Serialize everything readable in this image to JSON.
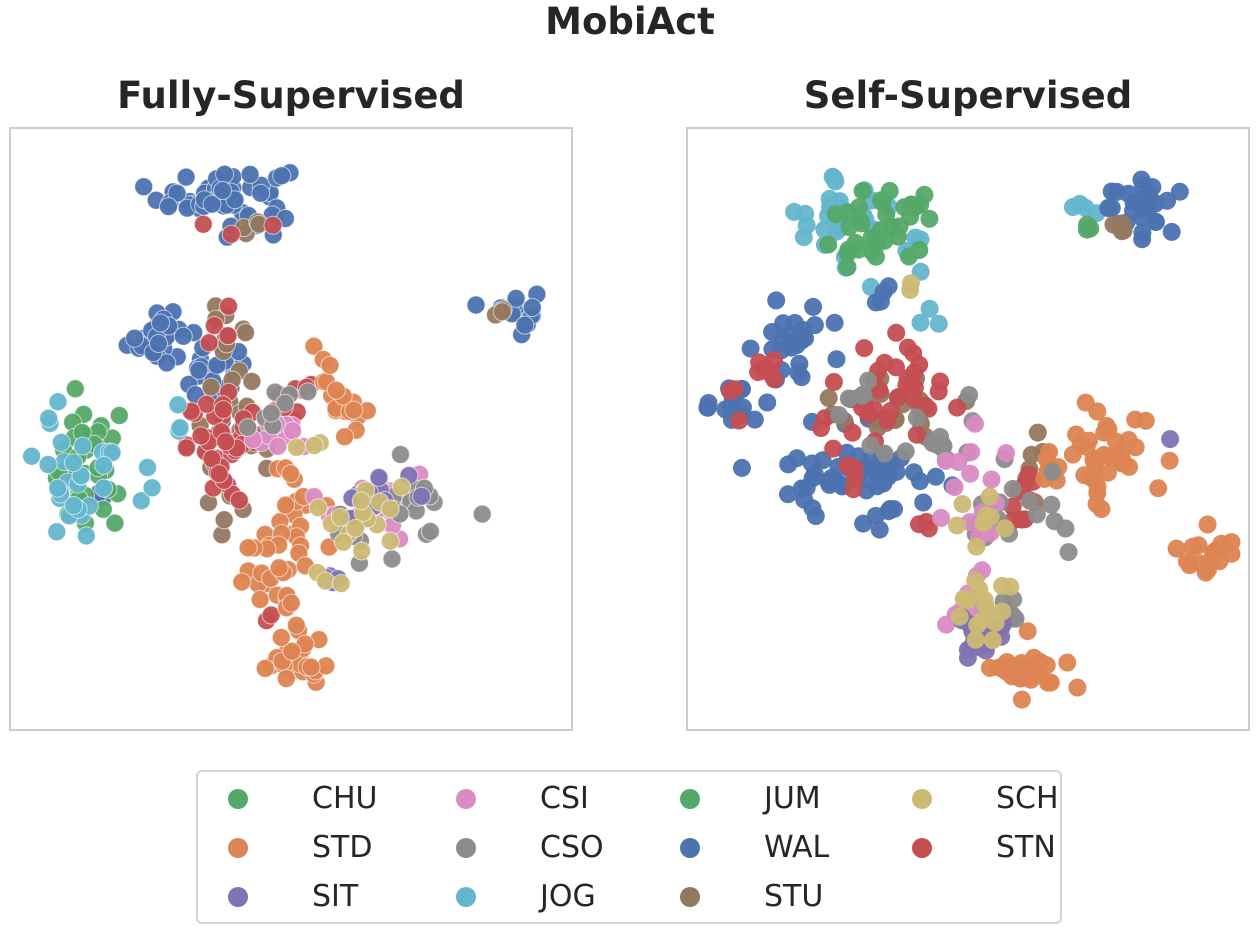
{
  "title": "MobiAct",
  "panels": [
    {
      "title": "Fully-Supervised"
    },
    {
      "title": "Self-Supervised"
    }
  ],
  "legend": {
    "position": "bottom-center",
    "columns": 4,
    "items": [
      {
        "label": "CHU",
        "color": "#55a868"
      },
      {
        "label": "STD",
        "color": "#dd8452"
      },
      {
        "label": "SIT",
        "color": "#8172b3"
      },
      {
        "label": "CSI",
        "color": "#da8bc3"
      },
      {
        "label": "CSO",
        "color": "#8c8c8c"
      },
      {
        "label": "JOG",
        "color": "#64b5cd"
      },
      {
        "label": "JUM",
        "color": "#55a868"
      },
      {
        "label": "WAL",
        "color": "#4c72b0"
      },
      {
        "label": "STU",
        "color": "#937860"
      },
      {
        "label": "SCH",
        "color": "#ccb974"
      },
      {
        "label": "STN",
        "color": "#c44e52"
      }
    ]
  },
  "chart_data": [
    {
      "type": "scatter",
      "title": "Fully-Supervised",
      "xlabel": "",
      "ylabel": "",
      "xlim": [
        0,
        100
      ],
      "ylim": [
        0,
        100
      ],
      "grid": false,
      "clusters": [
        {
          "label": "WAL",
          "cx": 38,
          "cy": 90,
          "sx": 6,
          "sy": 2.5,
          "n": 60
        },
        {
          "label": "WAL",
          "cx": 91,
          "cy": 70.5,
          "sx": 2,
          "sy": 2,
          "n": 18
        },
        {
          "label": "WAL",
          "cx": 26,
          "cy": 66,
          "sx": 3,
          "sy": 2.5,
          "n": 28
        },
        {
          "label": "WAL",
          "cx": 36,
          "cy": 59,
          "sx": 3,
          "sy": 2.5,
          "n": 22
        },
        {
          "label": "WAL",
          "cx": 15,
          "cy": 38,
          "sx": 1.5,
          "sy": 1.5,
          "n": 3
        },
        {
          "label": "STU",
          "cx": 42,
          "cy": 84,
          "sx": 2,
          "sy": 1.5,
          "n": 4
        },
        {
          "label": "STU",
          "cx": 88,
          "cy": 69.5,
          "sx": 1,
          "sy": 1,
          "n": 3
        },
        {
          "label": "STU",
          "cx": 40,
          "cy": 51,
          "sx": 4,
          "sy": 4,
          "n": 22
        },
        {
          "label": "STU",
          "cx": 38,
          "cy": 67,
          "sx": 2,
          "sy": 3,
          "n": 8
        },
        {
          "label": "STU",
          "cx": 37,
          "cy": 37,
          "sx": 2,
          "sy": 2,
          "n": 5
        },
        {
          "label": "STN",
          "cx": 39,
          "cy": 47,
          "sx": 4,
          "sy": 4,
          "n": 40
        },
        {
          "label": "STN",
          "cx": 50,
          "cy": 55,
          "sx": 3,
          "sy": 1.5,
          "n": 10
        },
        {
          "label": "STN",
          "cx": 36,
          "cy": 68,
          "sx": 2,
          "sy": 2,
          "n": 5
        },
        {
          "label": "STN",
          "cx": 40,
          "cy": 84,
          "sx": 6,
          "sy": 1,
          "n": 3
        },
        {
          "label": "STN",
          "cx": 46,
          "cy": 18,
          "sx": 1,
          "sy": 1,
          "n": 2
        },
        {
          "label": "CHU",
          "cx": 12,
          "cy": 42,
          "sx": 3,
          "sy": 5,
          "n": 30
        },
        {
          "label": "JUM",
          "cx": 15,
          "cy": 48,
          "sx": 2,
          "sy": 2,
          "n": 6
        },
        {
          "label": "JOG",
          "cx": 13,
          "cy": 43,
          "sx": 5,
          "sy": 7,
          "n": 32
        },
        {
          "label": "JOG",
          "cx": 29,
          "cy": 52,
          "sx": 1.5,
          "sy": 1.5,
          "n": 3
        },
        {
          "label": "STD",
          "cx": 59,
          "cy": 56,
          "sx": 2.5,
          "sy": 3,
          "n": 22
        },
        {
          "label": "STD",
          "cx": 51,
          "cy": 37,
          "sx": 2,
          "sy": 4,
          "n": 18
        },
        {
          "label": "STD",
          "cx": 47,
          "cy": 26,
          "sx": 3,
          "sy": 3,
          "n": 18
        },
        {
          "label": "STD",
          "cx": 50,
          "cy": 10,
          "sx": 3,
          "sy": 2.5,
          "n": 25
        },
        {
          "label": "STD",
          "cx": 49,
          "cy": 18,
          "sx": 1,
          "sy": 4,
          "n": 6
        },
        {
          "label": "CSI",
          "cx": 48,
          "cy": 48,
          "sx": 3,
          "sy": 2,
          "n": 12
        },
        {
          "label": "CSI",
          "cx": 66,
          "cy": 37,
          "sx": 6,
          "sy": 3,
          "n": 18
        },
        {
          "label": "CSO",
          "cx": 69,
          "cy": 36,
          "sx": 6,
          "sy": 4,
          "n": 28
        },
        {
          "label": "CSO",
          "cx": 45,
          "cy": 53,
          "sx": 3,
          "sy": 3,
          "n": 8
        },
        {
          "label": "SIT",
          "cx": 64,
          "cy": 38,
          "sx": 4,
          "sy": 3,
          "n": 14
        },
        {
          "label": "SIT",
          "cx": 58,
          "cy": 25,
          "sx": 1.5,
          "sy": 1,
          "n": 4
        },
        {
          "label": "SCH",
          "cx": 64,
          "cy": 35,
          "sx": 5,
          "sy": 3,
          "n": 16
        },
        {
          "label": "SCH",
          "cx": 58,
          "cy": 25,
          "sx": 1.5,
          "sy": 1,
          "n": 3
        },
        {
          "label": "SCH",
          "cx": 53,
          "cy": 47,
          "sx": 2,
          "sy": 1,
          "n": 3
        }
      ]
    },
    {
      "type": "scatter",
      "title": "Self-Supervised",
      "xlabel": "",
      "ylabel": "",
      "xlim": [
        0,
        100
      ],
      "ylim": [
        0,
        100
      ],
      "grid": false,
      "clusters": [
        {
          "label": "JOG",
          "cx": 30,
          "cy": 85,
          "sx": 6,
          "sy": 4,
          "n": 30
        },
        {
          "label": "JOG",
          "cx": 25,
          "cy": 92,
          "sx": 1,
          "sy": 2,
          "n": 5
        },
        {
          "label": "JOG",
          "cx": 71,
          "cy": 88,
          "sx": 1.5,
          "sy": 1.5,
          "n": 4
        },
        {
          "label": "JOG",
          "cx": 41,
          "cy": 70,
          "sx": 2,
          "sy": 1.5,
          "n": 3
        },
        {
          "label": "CHU",
          "cx": 32,
          "cy": 83,
          "sx": 5,
          "sy": 3,
          "n": 26
        },
        {
          "label": "JUM",
          "cx": 38,
          "cy": 88,
          "sx": 4,
          "sy": 2,
          "n": 10
        },
        {
          "label": "JUM",
          "cx": 72,
          "cy": 85,
          "sx": 1,
          "sy": 1,
          "n": 3
        },
        {
          "label": "WAL",
          "cx": 81,
          "cy": 88,
          "sx": 3,
          "sy": 2.5,
          "n": 26
        },
        {
          "label": "WAL",
          "cx": 20,
          "cy": 65,
          "sx": 4,
          "sy": 3,
          "n": 26
        },
        {
          "label": "WAL",
          "cx": 7,
          "cy": 54,
          "sx": 3,
          "sy": 2,
          "n": 18
        },
        {
          "label": "WAL",
          "cx": 30,
          "cy": 42,
          "sx": 7,
          "sy": 4,
          "n": 55
        },
        {
          "label": "WAL",
          "cx": 34,
          "cy": 72,
          "sx": 2,
          "sy": 2,
          "n": 4
        },
        {
          "label": "STU",
          "cx": 78,
          "cy": 85,
          "sx": 1,
          "sy": 1,
          "n": 4
        },
        {
          "label": "STU",
          "cx": 36,
          "cy": 54,
          "sx": 5,
          "sy": 3,
          "n": 22
        },
        {
          "label": "STU",
          "cx": 62,
          "cy": 42,
          "sx": 2,
          "sy": 3,
          "n": 6
        },
        {
          "label": "STN",
          "cx": 37,
          "cy": 57,
          "sx": 7,
          "sy": 5,
          "n": 34
        },
        {
          "label": "STN",
          "cx": 12,
          "cy": 58,
          "sx": 4,
          "sy": 3,
          "n": 10
        },
        {
          "label": "STN",
          "cx": 60,
          "cy": 38,
          "sx": 2,
          "sy": 3,
          "n": 10
        },
        {
          "label": "STN",
          "cx": 30,
          "cy": 42,
          "sx": 3,
          "sy": 3,
          "n": 5
        },
        {
          "label": "STN",
          "cx": 43,
          "cy": 33,
          "sx": 1.5,
          "sy": 1.5,
          "n": 3
        },
        {
          "label": "STD",
          "cx": 76,
          "cy": 47,
          "sx": 4,
          "sy": 4,
          "n": 36
        },
        {
          "label": "STD",
          "cx": 93,
          "cy": 29,
          "sx": 3,
          "sy": 2,
          "n": 16
        },
        {
          "label": "STD",
          "cx": 61,
          "cy": 8,
          "sx": 4,
          "sy": 2.5,
          "n": 24
        },
        {
          "label": "STD",
          "cx": 65,
          "cy": 43,
          "sx": 2,
          "sy": 2,
          "n": 6
        },
        {
          "label": "CSO",
          "cx": 46,
          "cy": 48,
          "sx": 5,
          "sy": 4,
          "n": 14
        },
        {
          "label": "CSO",
          "cx": 60,
          "cy": 35,
          "sx": 5,
          "sy": 4,
          "n": 18
        },
        {
          "label": "CSO",
          "cx": 52,
          "cy": 20,
          "sx": 3,
          "sy": 2,
          "n": 8
        },
        {
          "label": "CSO",
          "cx": 27,
          "cy": 54,
          "sx": 3,
          "sy": 2,
          "n": 5
        },
        {
          "label": "CSI",
          "cx": 50,
          "cy": 38,
          "sx": 4,
          "sy": 5,
          "n": 14
        },
        {
          "label": "CSI",
          "cx": 49,
          "cy": 20,
          "sx": 2,
          "sy": 3,
          "n": 8
        },
        {
          "label": "SIT",
          "cx": 52,
          "cy": 15,
          "sx": 3,
          "sy": 2.5,
          "n": 24
        },
        {
          "label": "SIT",
          "cx": 87,
          "cy": 48,
          "sx": 0.5,
          "sy": 0.5,
          "n": 1
        },
        {
          "label": "SCH",
          "cx": 53,
          "cy": 20,
          "sx": 2,
          "sy": 3,
          "n": 16
        },
        {
          "label": "SCH",
          "cx": 53,
          "cy": 34,
          "sx": 2,
          "sy": 2,
          "n": 8
        },
        {
          "label": "SCH",
          "cx": 39,
          "cy": 75,
          "sx": 1,
          "sy": 1,
          "n": 2
        }
      ]
    }
  ]
}
